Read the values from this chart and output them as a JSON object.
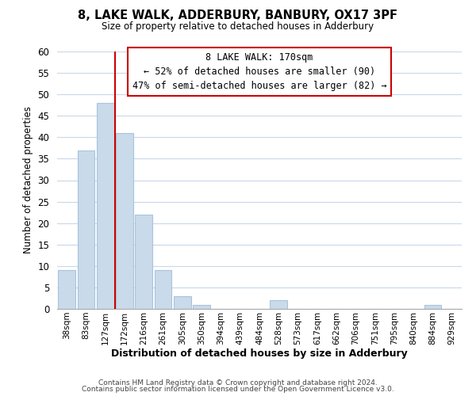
{
  "title": "8, LAKE WALK, ADDERBURY, BANBURY, OX17 3PF",
  "subtitle": "Size of property relative to detached houses in Adderbury",
  "xlabel": "Distribution of detached houses by size in Adderbury",
  "ylabel": "Number of detached properties",
  "bar_labels": [
    "38sqm",
    "83sqm",
    "127sqm",
    "172sqm",
    "216sqm",
    "261sqm",
    "305sqm",
    "350sqm",
    "394sqm",
    "439sqm",
    "484sqm",
    "528sqm",
    "573sqm",
    "617sqm",
    "662sqm",
    "706sqm",
    "751sqm",
    "795sqm",
    "840sqm",
    "884sqm",
    "929sqm"
  ],
  "bar_values": [
    9,
    37,
    48,
    41,
    22,
    9,
    3,
    1,
    0,
    0,
    0,
    2,
    0,
    0,
    0,
    0,
    0,
    0,
    0,
    1,
    0
  ],
  "bar_color": "#c9daea",
  "bar_edge_color": "#a8c4dc",
  "vline_x_index": 3,
  "vline_color": "#cc0000",
  "ylim": [
    0,
    60
  ],
  "yticks": [
    0,
    5,
    10,
    15,
    20,
    25,
    30,
    35,
    40,
    45,
    50,
    55,
    60
  ],
  "annotation_title": "8 LAKE WALK: 170sqm",
  "annotation_line1": "← 52% of detached houses are smaller (90)",
  "annotation_line2": "47% of semi-detached houses are larger (82) →",
  "annotation_box_color": "#ffffff",
  "annotation_box_edge": "#cc0000",
  "footer1": "Contains HM Land Registry data © Crown copyright and database right 2024.",
  "footer2": "Contains public sector information licensed under the Open Government Licence v3.0.",
  "background_color": "#ffffff",
  "grid_color": "#c8d8e8"
}
